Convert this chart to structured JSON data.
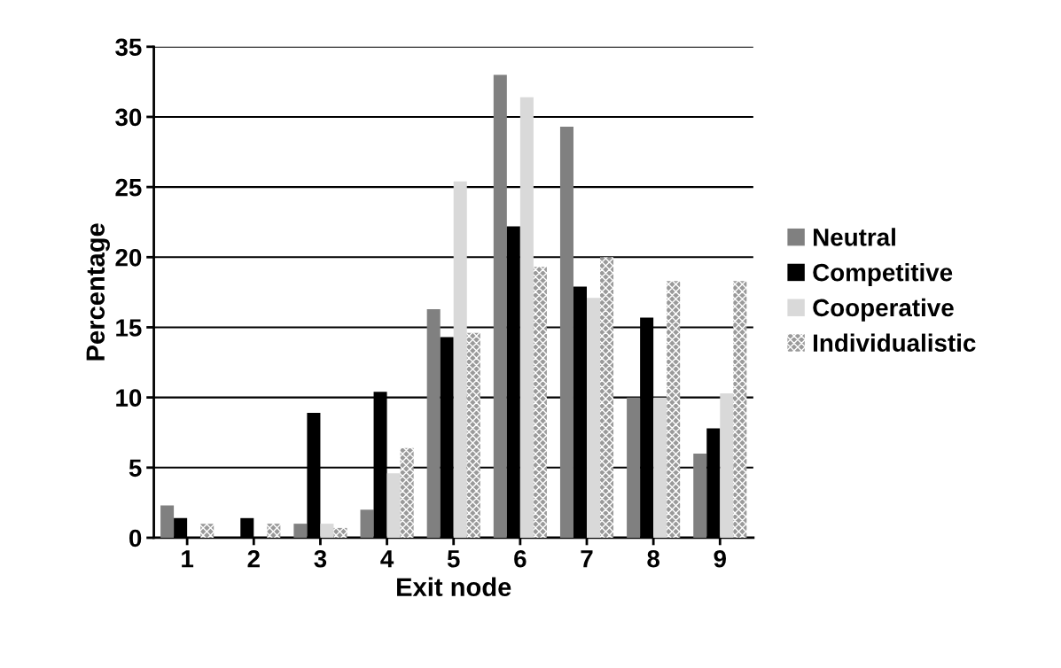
{
  "chart_data": {
    "type": "bar",
    "xlabel": "Exit node",
    "ylabel": "Percentage",
    "categories": [
      "1",
      "2",
      "3",
      "4",
      "5",
      "6",
      "7",
      "8",
      "9"
    ],
    "series": [
      {
        "name": "Neutral",
        "color": "#808080",
        "values": [
          2.3,
          0,
          1,
          2,
          16.3,
          33,
          29.3,
          10,
          6
        ]
      },
      {
        "name": "Competitive",
        "color": "#000000",
        "values": [
          1.4,
          1.4,
          8.9,
          10.4,
          14.3,
          22.2,
          17.9,
          15.7,
          7.8
        ]
      },
      {
        "name": "Cooperative",
        "color": "#d9d9d9",
        "values": [
          0,
          0,
          1,
          4.6,
          25.4,
          31.4,
          17.1,
          10,
          10.3
        ]
      },
      {
        "name": "Individualistic",
        "color": "#9a9a9a",
        "values": [
          1,
          1,
          0.7,
          6.4,
          14.6,
          19.3,
          20,
          18.3,
          18.3
        ]
      }
    ],
    "ylim": [
      0,
      35
    ],
    "yticks": [
      0,
      5,
      10,
      15,
      20,
      25,
      30,
      35
    ],
    "grid": "y",
    "legend": "right"
  }
}
